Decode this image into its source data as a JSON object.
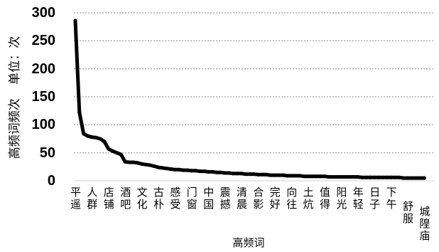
{
  "chart_data": {
    "type": "line",
    "xlabel": "高频词",
    "ylabel": "高频词频次 单位：次",
    "ylim": [
      0,
      300
    ],
    "yticks": [
      0,
      50,
      100,
      150,
      200,
      250,
      300
    ],
    "grid": true,
    "legend": false,
    "categories": [
      "平遥",
      "",
      "",
      "",
      "人群",
      "",
      "",
      "",
      "店铺",
      "",
      "",
      "",
      "酒吧",
      "",
      "",
      "",
      "文化",
      "",
      "",
      "",
      "古朴",
      "",
      "",
      "",
      "感受",
      "",
      "",
      "",
      "门窗",
      "",
      "",
      "",
      "中国",
      "",
      "",
      "",
      "震撼",
      "",
      "",
      "",
      "清晨",
      "",
      "",
      "",
      "合影",
      "",
      "",
      "",
      "完好",
      "",
      "",
      "",
      "向往",
      "",
      "",
      "",
      "土炕",
      "",
      "",
      "",
      "值得",
      "",
      "",
      "",
      "阳光",
      "",
      "",
      "",
      "年轻",
      "",
      "",
      "",
      "日子",
      "",
      "",
      "",
      "下午",
      "",
      "",
      "",
      "舒服",
      "",
      "",
      "",
      "城隍庙"
    ],
    "series": [
      {
        "color": "#000000",
        "values": [
          286,
          122,
          84,
          80,
          78,
          77,
          75,
          70,
          57,
          53,
          50,
          47,
          34,
          33,
          33,
          32,
          30,
          29,
          28,
          26,
          24,
          23,
          22,
          21,
          20,
          20,
          19,
          19,
          18,
          18,
          17,
          17,
          16,
          16,
          15,
          15,
          14,
          14,
          13,
          13,
          13,
          12,
          12,
          12,
          11,
          11,
          11,
          10,
          10,
          10,
          10,
          9,
          9,
          9,
          9,
          8,
          8,
          8,
          8,
          8,
          8,
          7,
          7,
          7,
          7,
          7,
          7,
          7,
          7,
          6,
          6,
          6,
          6,
          6,
          6,
          6,
          6,
          6,
          6,
          5,
          5,
          5,
          5,
          5,
          5
        ]
      }
    ]
  }
}
